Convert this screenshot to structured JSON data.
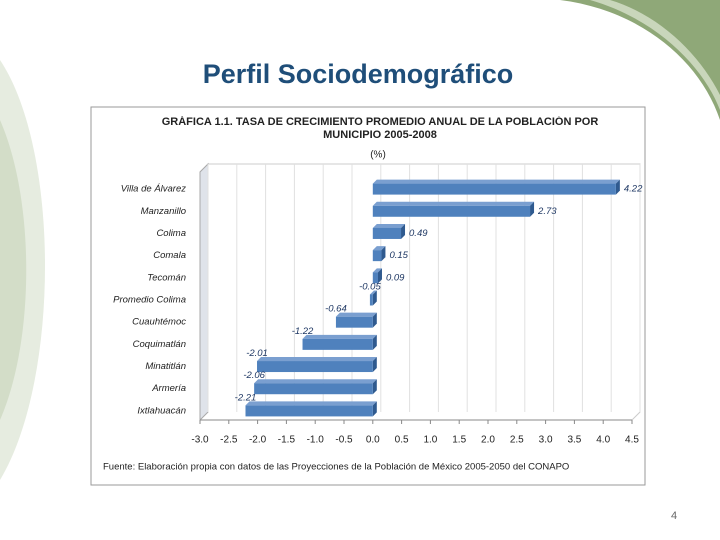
{
  "slide_title": "Perfil Sociodemográfico",
  "page_number": "4",
  "chart_data": {
    "type": "bar",
    "orientation": "horizontal",
    "title": "GRÁFICA 1.1. TASA DE CRECIMIENTO PROMEDIO ANUAL DE LA POBLACIÓN POR MUNICIPIO 2005-2008",
    "subtitle": "(%)",
    "categories": [
      "Villa de Álvarez",
      "Manzanillo",
      "Colima",
      "Comala",
      "Tecomán",
      "Promedio Colima",
      "Cuauhtémoc",
      "Coquimatlán",
      "Minatitlán",
      "Armería",
      "Ixtlahuacán"
    ],
    "values": [
      4.22,
      2.73,
      0.49,
      0.15,
      0.09,
      -0.05,
      -0.64,
      -1.22,
      -2.01,
      -2.06,
      -2.21
    ],
    "color": "#4f81bd",
    "xlim": [
      -3,
      4.5
    ],
    "xticks": [
      {
        "value": -3,
        "label": "-3.0"
      },
      {
        "value": -2.5,
        "label": "-2.5"
      },
      {
        "value": -2,
        "label": "-2.0"
      },
      {
        "value": -1.5,
        "label": "-1.5"
      },
      {
        "value": -1,
        "label": "-1.0"
      },
      {
        "value": -0.5,
        "label": "-0.5"
      },
      {
        "value": 0,
        "label": "0.0"
      },
      {
        "value": 0.5,
        "label": "0.5"
      },
      {
        "value": 1,
        "label": "1.0"
      },
      {
        "value": 1.5,
        "label": "1.5"
      },
      {
        "value": 2,
        "label": "2.0"
      },
      {
        "value": 2.5,
        "label": "2.5"
      },
      {
        "value": 3,
        "label": "3.0"
      },
      {
        "value": 3.5,
        "label": "3.5"
      },
      {
        "value": 4,
        "label": "4.0"
      },
      {
        "value": 4.5,
        "label": "4.5"
      }
    ],
    "grid": true,
    "source": "Fuente: Elaboración propia con datos de las Proyecciones de la Población de México 2005-2050 del CONAPO"
  }
}
